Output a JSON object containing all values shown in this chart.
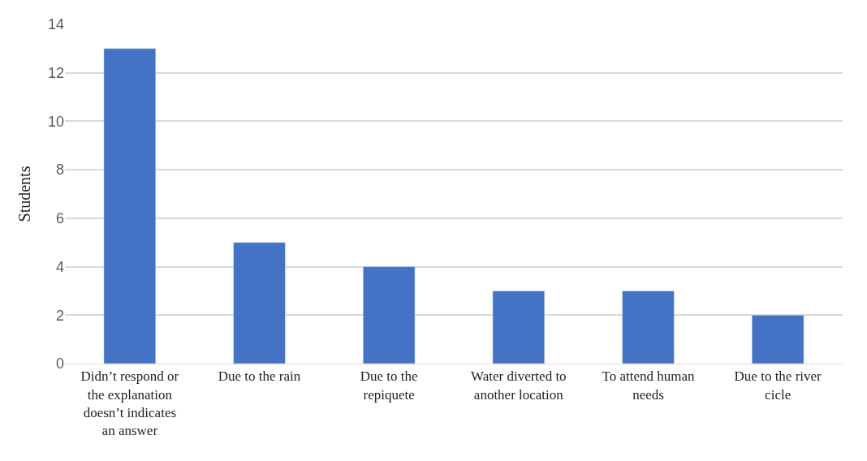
{
  "chart_data": {
    "type": "bar",
    "ylabel": "Students",
    "categories": [
      "Didn’t respond or the explanation doesn’t indicates an answer",
      "Due to the rain",
      "Due to the repiquete",
      "Water diverted to another location",
      "To attend human needs",
      "Due to the river cicle"
    ],
    "values": [
      13,
      5,
      4,
      3,
      3,
      2
    ],
    "color": "#4472c4",
    "ylim": [
      0,
      14
    ],
    "yticks": [
      0,
      2,
      4,
      6,
      8,
      10,
      12,
      14
    ],
    "grid": "y"
  }
}
